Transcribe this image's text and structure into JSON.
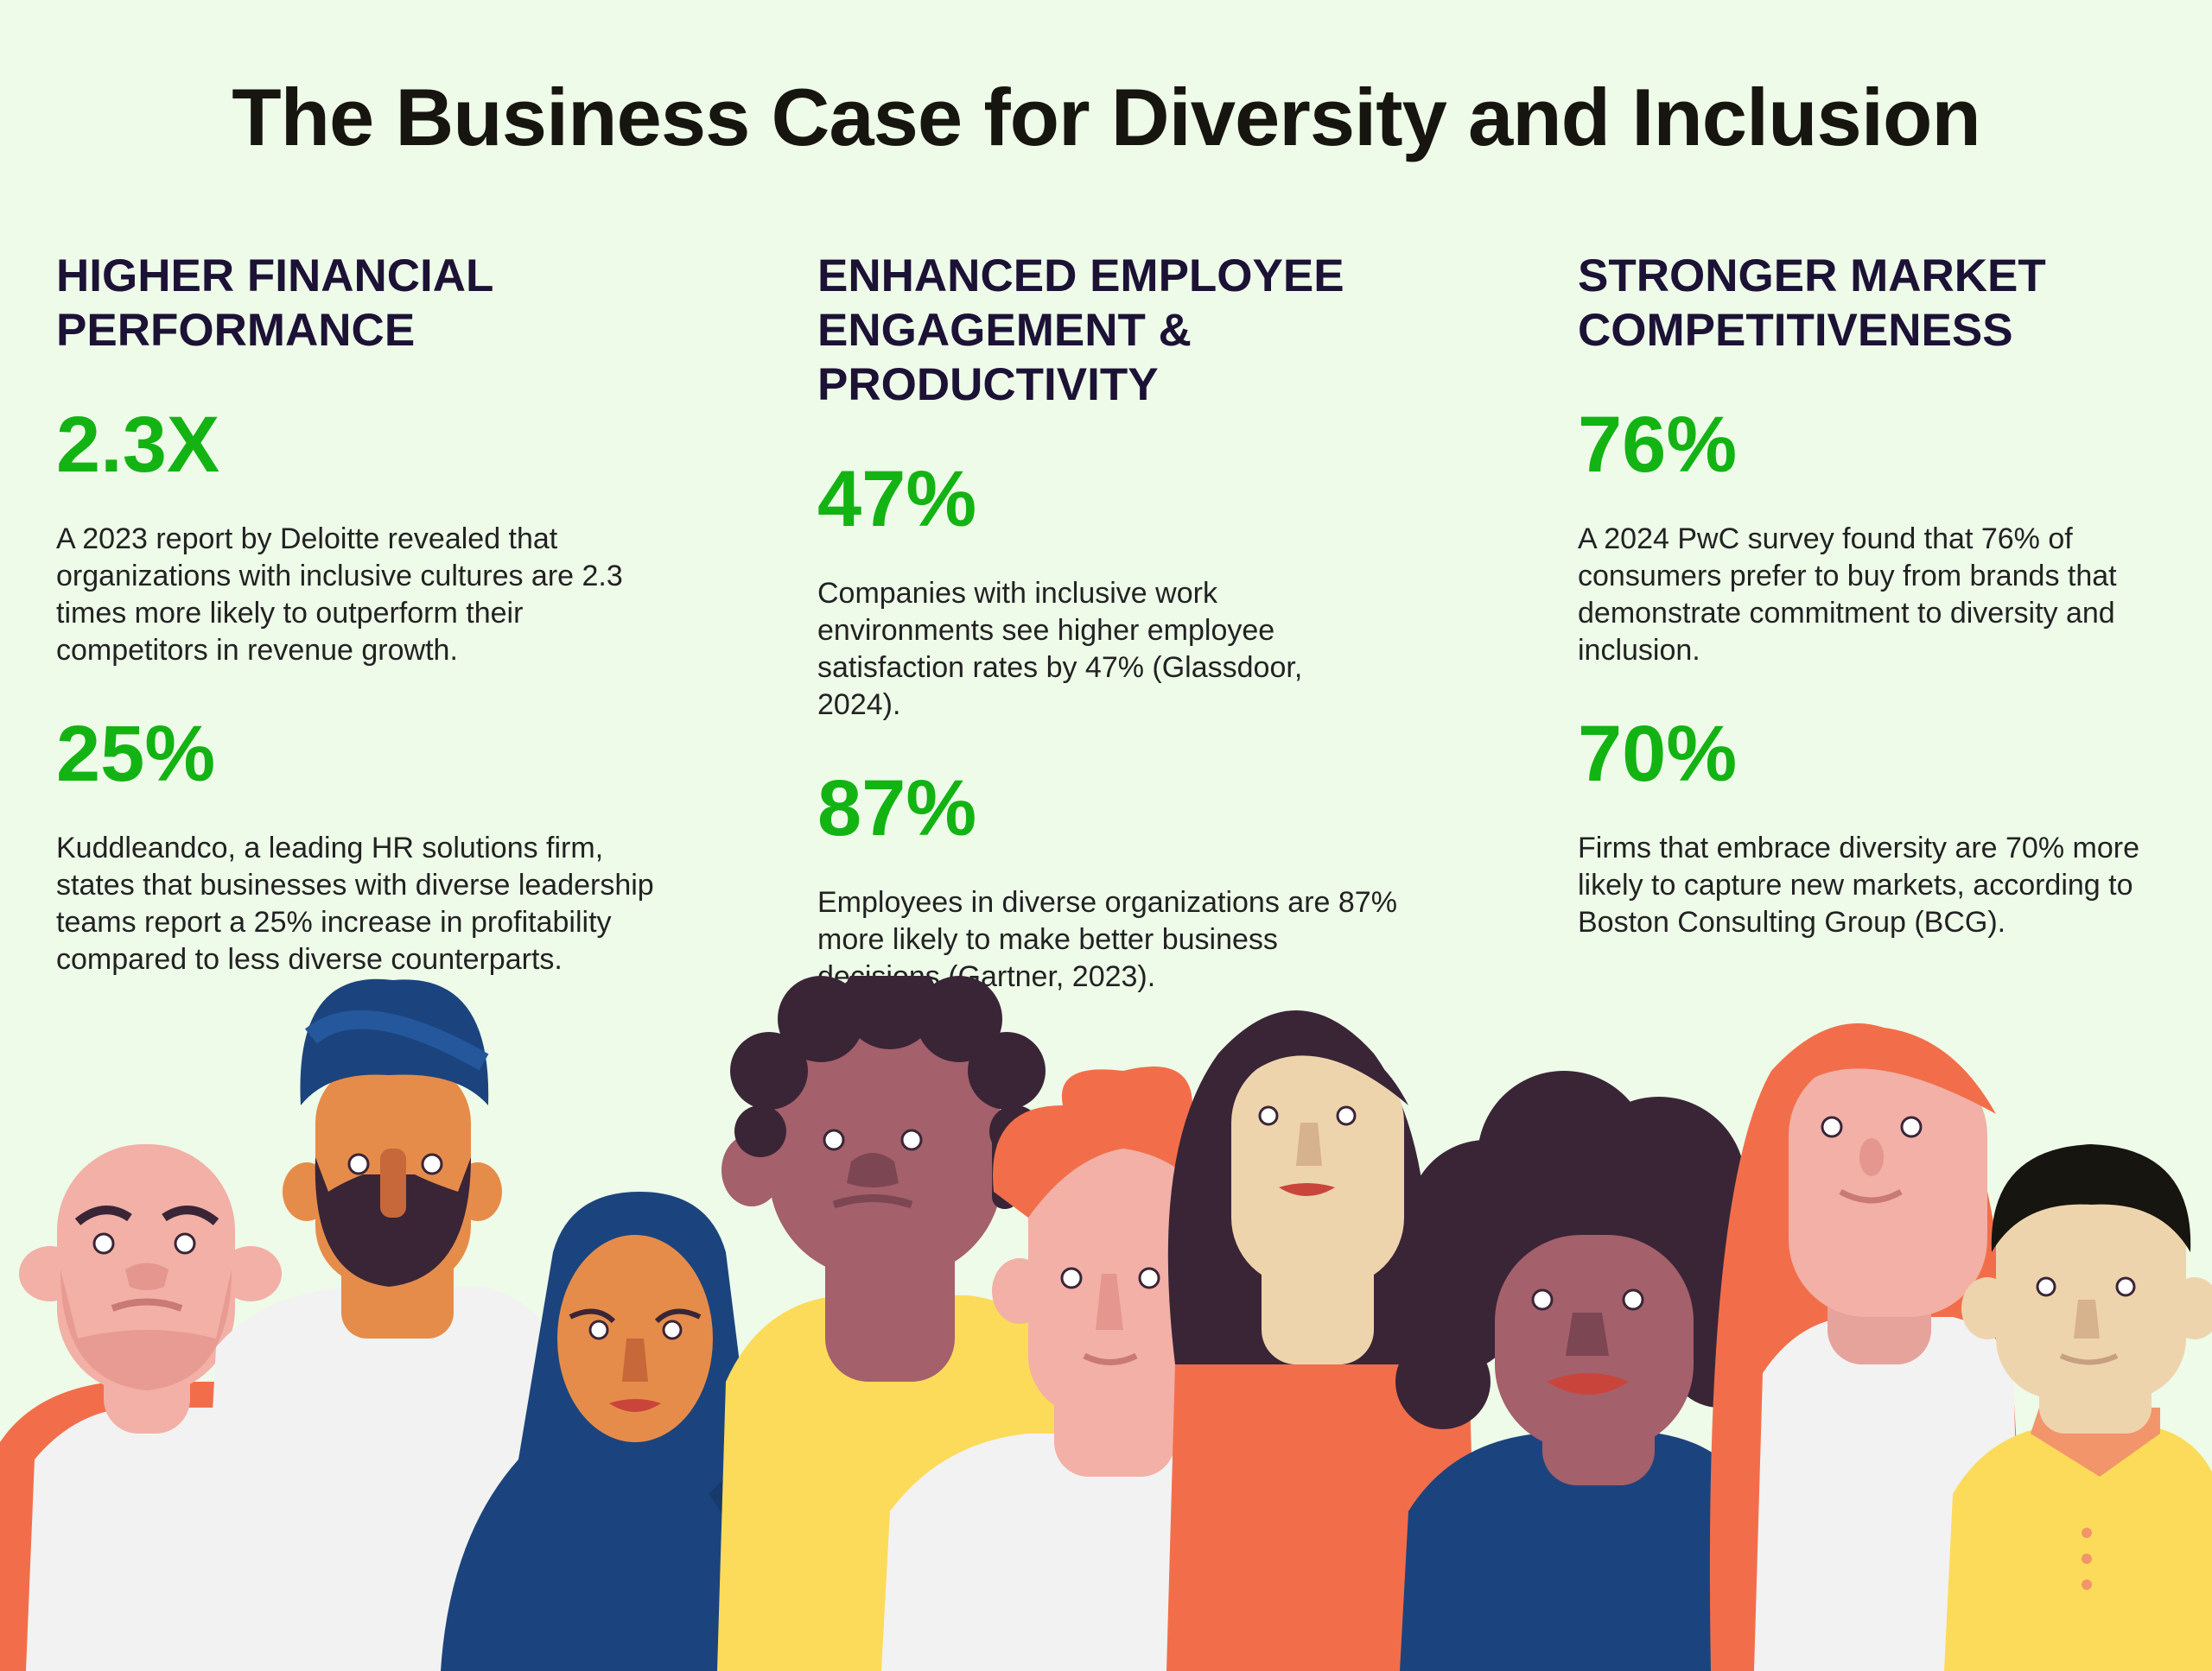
{
  "title": "The Business Case for Diversity and Inclusion",
  "columns": [
    {
      "heading": "HIGHER FINANCIAL PERFORMANCE",
      "stats": [
        {
          "value": "2.3X",
          "text": "A 2023 report by Deloitte revealed that organizations with inclusive cultures are 2.3 times more likely to outperform their competitors in revenue growth."
        },
        {
          "value": "25%",
          "text": "Kuddleandco, a leading HR solutions firm, states that businesses with diverse leadership teams report a 25% increase in profitability compared to less diverse counterparts."
        }
      ]
    },
    {
      "heading": "ENHANCED EMPLOYEE ENGAGEMENT & PRODUCTIVITY",
      "stats": [
        {
          "value": "47%",
          "text": "Companies with inclusive work environments see higher employee satisfaction rates by 47% (Glassdoor, 2024)."
        },
        {
          "value": "87%",
          "text": "Employees in diverse organizations are 87% more likely to make better business decisions (Gartner, 2023)."
        }
      ]
    },
    {
      "heading": "STRONGER MARKET COMPETITIVENESS",
      "stats": [
        {
          "value": "76%",
          "text": "A 2024 PwC survey found that 76% of consumers prefer to buy from brands that demonstrate commitment to diversity and inclusion."
        },
        {
          "value": "70%",
          "text": "Firms that embrace diversity are 70% more likely to capture new markets, according to Boston Consulting Group (BCG)."
        }
      ]
    }
  ],
  "colors": {
    "background": "#eefbe9",
    "heading": "#1c1235",
    "stat": "#13b313",
    "orange": "#f26e4a",
    "yellow": "#fddb5a",
    "navy": "#1b447e",
    "dark_hair": "#3a2537"
  },
  "illustration": {
    "name": "diverse-group-of-people-illustration",
    "people": [
      "bald-bearded-man",
      "man-with-turban",
      "woman-in-hijab",
      "curly-haired-man",
      "red-haired-man",
      "long-haired-woman",
      "curly-haired-woman",
      "red-haired-woman",
      "man-with-black-hair"
    ]
  }
}
